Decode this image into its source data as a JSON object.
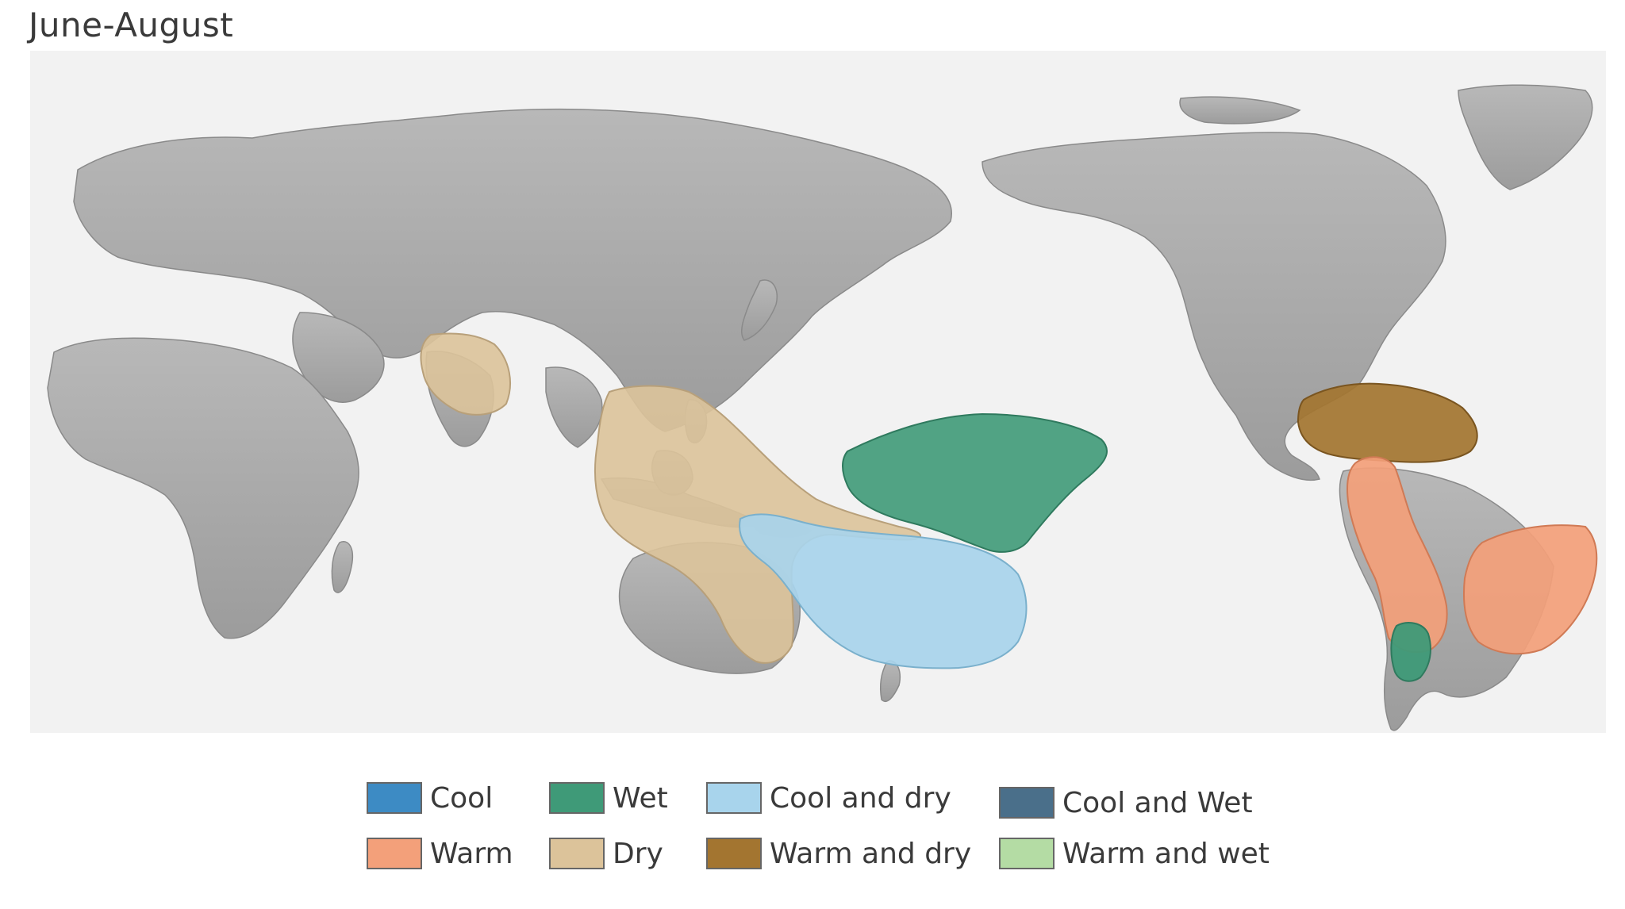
{
  "title": "June-August",
  "legend": {
    "items": [
      {
        "label": "Cool",
        "color": "#3d8bc4"
      },
      {
        "label": "Wet",
        "color": "#3f9a78"
      },
      {
        "label": "Cool and dry",
        "color": "#a8d4ec"
      },
      {
        "label": "Cool and Wet",
        "color": "#4a6f8a"
      },
      {
        "label": "Warm",
        "color": "#f3a07a"
      },
      {
        "label": "Dry",
        "color": "#dcc39a"
      },
      {
        "label": "Warm and dry",
        "color": "#a37530"
      },
      {
        "label": "Warm and wet",
        "color": "#b4dca4"
      }
    ]
  },
  "map": {
    "land_color": "#a9a9a9",
    "ocean_color": "#f2f2f2",
    "regions": [
      {
        "name": "india-dry",
        "category": "Dry"
      },
      {
        "name": "indonesia-australia-dry",
        "category": "Dry"
      },
      {
        "name": "central-pacific-wet",
        "category": "Wet"
      },
      {
        "name": "southwest-pacific-cool-and-dry",
        "category": "Cool and dry"
      },
      {
        "name": "central-america-warm-and-dry",
        "category": "Warm and dry"
      },
      {
        "name": "andes-warm",
        "category": "Warm"
      },
      {
        "name": "southern-brazil-warm",
        "category": "Warm"
      },
      {
        "name": "chile-wet",
        "category": "Wet"
      }
    ]
  }
}
